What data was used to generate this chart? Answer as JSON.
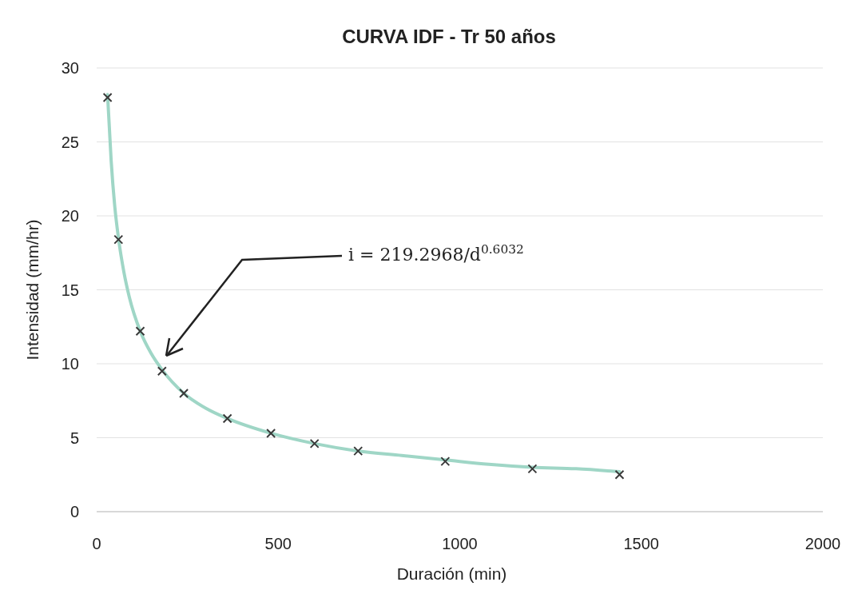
{
  "chart_data": {
    "type": "scatter",
    "title": "CURVA IDF - Tr 50 años",
    "xlabel": "Duración (min)",
    "ylabel": "Intensidad (mm/hr)",
    "xlim": [
      0,
      2000
    ],
    "xticks": [
      0,
      500,
      1000,
      1500,
      2000
    ],
    "ylim": [
      0,
      30
    ],
    "yticks": [
      0,
      5,
      10,
      15,
      20,
      25,
      30
    ],
    "grid": "y",
    "marker": "cross",
    "series": [
      {
        "type": "line",
        "marker": "none",
        "color": "#9fd6c6",
        "x": [
          30,
          40,
          50,
          60,
          75,
          90,
          120,
          150,
          180,
          240,
          300,
          360,
          480,
          600,
          720,
          840,
          960,
          1080,
          1200,
          1320,
          1440
        ],
        "values": [
          28.2,
          23.7,
          20.6,
          18.5,
          16.2,
          14.5,
          12.2,
          10.7,
          9.6,
          8.0,
          7.0,
          6.3,
          5.3,
          4.6,
          4.1,
          3.8,
          3.5,
          3.2,
          3.0,
          2.9,
          2.7
        ]
      },
      {
        "color": "#3a3a3a",
        "x": [
          30,
          60,
          120,
          180,
          240,
          360,
          480,
          600,
          720,
          960,
          1200,
          1440
        ],
        "values": [
          28.0,
          18.4,
          12.2,
          9.5,
          8.0,
          6.3,
          5.3,
          4.6,
          4.1,
          3.4,
          2.9,
          2.5
        ]
      }
    ],
    "annotations": [
      "i = 219.2968/d$^{0.6032}$"
    ]
  }
}
